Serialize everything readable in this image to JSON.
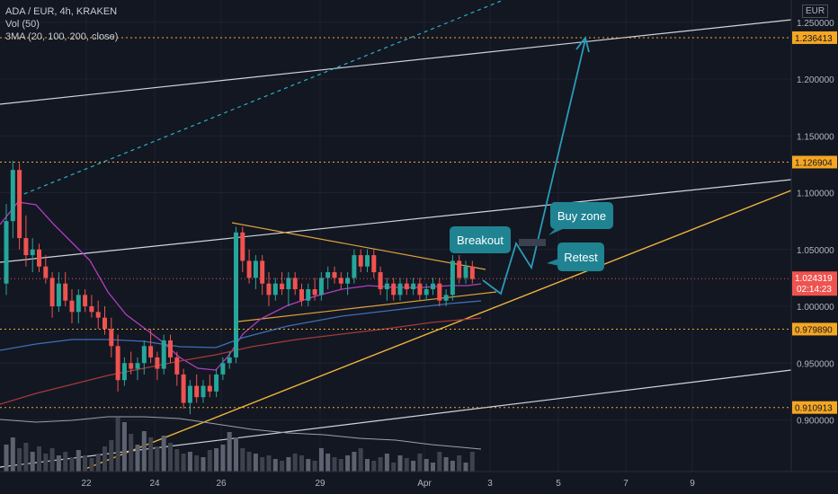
{
  "header": {
    "symbol_line": "ADA / EUR, 4h, KRAKEN",
    "volume_line": "Vol (50)",
    "ma_line": "3MA (20, 100, 200, close)",
    "currency": "EUR"
  },
  "chart_data": {
    "type": "candlestick",
    "title": "ADA / EUR, 4h, KRAKEN",
    "currency": "EUR",
    "ylim": [
      0.88,
      1.25
    ],
    "price_ticks": [
      "0.900000",
      "0.950000",
      "1.000000",
      "1.050000",
      "1.100000",
      "1.150000",
      "1.200000",
      "1.250000"
    ],
    "price_tick_values": [
      0.9,
      0.95,
      1.0,
      1.05,
      1.1,
      1.15,
      1.2,
      1.25
    ],
    "date_ticks": [
      "22",
      "24",
      "26",
      "29",
      "Apr",
      "3",
      "5",
      "7",
      "9"
    ],
    "levels": [
      {
        "label": "1.236413",
        "value": 1.236413
      },
      {
        "label": "1.126904",
        "value": 1.126904
      },
      {
        "label": "0.979890",
        "value": 0.97989
      },
      {
        "label": "0.910913",
        "value": 0.910913
      }
    ],
    "current_price": {
      "label": "1.024319",
      "value": 1.024319,
      "countdown": "02:14:23"
    },
    "annotations": [
      "Breakout",
      "Buy zone",
      "Retest"
    ],
    "candles": [
      {
        "o": 1.02,
        "h": 1.09,
        "l": 1.01,
        "c": 1.075
      },
      {
        "o": 1.075,
        "h": 1.128,
        "l": 1.06,
        "c": 1.12
      },
      {
        "o": 1.12,
        "h": 1.126,
        "l": 1.05,
        "c": 1.06
      },
      {
        "o": 1.06,
        "h": 1.08,
        "l": 1.035,
        "c": 1.045
      },
      {
        "o": 1.045,
        "h": 1.06,
        "l": 1.03,
        "c": 1.05
      },
      {
        "o": 1.05,
        "h": 1.055,
        "l": 1.03,
        "c": 1.035
      },
      {
        "o": 1.035,
        "h": 1.045,
        "l": 1.02,
        "c": 1.025
      },
      {
        "o": 1.025,
        "h": 1.03,
        "l": 0.99,
        "c": 1.0
      },
      {
        "o": 1.0,
        "h": 1.03,
        "l": 0.995,
        "c": 1.02
      },
      {
        "o": 1.02,
        "h": 1.03,
        "l": 1.0,
        "c": 1.005
      },
      {
        "o": 1.005,
        "h": 1.015,
        "l": 0.985,
        "c": 0.995
      },
      {
        "o": 0.995,
        "h": 1.015,
        "l": 0.985,
        "c": 1.01
      },
      {
        "o": 1.01,
        "h": 1.015,
        "l": 0.995,
        "c": 1.0
      },
      {
        "o": 1.0,
        "h": 1.01,
        "l": 0.99,
        "c": 0.995
      },
      {
        "o": 0.995,
        "h": 1.005,
        "l": 0.98,
        "c": 0.99
      },
      {
        "o": 0.99,
        "h": 1.0,
        "l": 0.975,
        "c": 0.98
      },
      {
        "o": 0.98,
        "h": 0.99,
        "l": 0.955,
        "c": 0.965
      },
      {
        "o": 0.965,
        "h": 0.975,
        "l": 0.925,
        "c": 0.935
      },
      {
        "o": 0.935,
        "h": 0.955,
        "l": 0.93,
        "c": 0.95
      },
      {
        "o": 0.95,
        "h": 0.96,
        "l": 0.94,
        "c": 0.945
      },
      {
        "o": 0.945,
        "h": 0.955,
        "l": 0.935,
        "c": 0.95
      },
      {
        "o": 0.95,
        "h": 0.97,
        "l": 0.94,
        "c": 0.965
      },
      {
        "o": 0.965,
        "h": 0.98,
        "l": 0.95,
        "c": 0.955
      },
      {
        "o": 0.955,
        "h": 0.96,
        "l": 0.935,
        "c": 0.945
      },
      {
        "o": 0.945,
        "h": 0.975,
        "l": 0.94,
        "c": 0.97
      },
      {
        "o": 0.97,
        "h": 0.975,
        "l": 0.95,
        "c": 0.955
      },
      {
        "o": 0.955,
        "h": 0.96,
        "l": 0.93,
        "c": 0.94
      },
      {
        "o": 0.94,
        "h": 0.945,
        "l": 0.91,
        "c": 0.915
      },
      {
        "o": 0.915,
        "h": 0.935,
        "l": 0.905,
        "c": 0.93
      },
      {
        "o": 0.93,
        "h": 0.94,
        "l": 0.915,
        "c": 0.92
      },
      {
        "o": 0.92,
        "h": 0.935,
        "l": 0.915,
        "c": 0.93
      },
      {
        "o": 0.93,
        "h": 0.94,
        "l": 0.92,
        "c": 0.925
      },
      {
        "o": 0.925,
        "h": 0.945,
        "l": 0.92,
        "c": 0.94
      },
      {
        "o": 0.94,
        "h": 0.955,
        "l": 0.935,
        "c": 0.95
      },
      {
        "o": 0.95,
        "h": 0.96,
        "l": 0.945,
        "c": 0.955
      },
      {
        "o": 0.955,
        "h": 1.07,
        "l": 0.95,
        "c": 1.065
      },
      {
        "o": 1.065,
        "h": 1.07,
        "l": 1.03,
        "c": 1.04
      },
      {
        "o": 1.04,
        "h": 1.05,
        "l": 1.02,
        "c": 1.025
      },
      {
        "o": 1.025,
        "h": 1.045,
        "l": 1.015,
        "c": 1.04
      },
      {
        "o": 1.04,
        "h": 1.045,
        "l": 1.01,
        "c": 1.02
      },
      {
        "o": 1.02,
        "h": 1.03,
        "l": 1.0,
        "c": 1.01
      },
      {
        "o": 1.01,
        "h": 1.025,
        "l": 1.005,
        "c": 1.02
      },
      {
        "o": 1.02,
        "h": 1.03,
        "l": 1.01,
        "c": 1.015
      },
      {
        "o": 1.015,
        "h": 1.03,
        "l": 1.0,
        "c": 1.025
      },
      {
        "o": 1.025,
        "h": 1.03,
        "l": 1.01,
        "c": 1.015
      },
      {
        "o": 1.015,
        "h": 1.02,
        "l": 1.0,
        "c": 1.005
      },
      {
        "o": 1.005,
        "h": 1.02,
        "l": 1.0,
        "c": 1.015
      },
      {
        "o": 1.015,
        "h": 1.025,
        "l": 1.005,
        "c": 1.01
      },
      {
        "o": 1.01,
        "h": 1.03,
        "l": 1.005,
        "c": 1.025
      },
      {
        "o": 1.025,
        "h": 1.035,
        "l": 1.015,
        "c": 1.03
      },
      {
        "o": 1.03,
        "h": 1.035,
        "l": 1.02,
        "c": 1.025
      },
      {
        "o": 1.025,
        "h": 1.03,
        "l": 1.015,
        "c": 1.02
      },
      {
        "o": 1.02,
        "h": 1.03,
        "l": 1.01,
        "c": 1.025
      },
      {
        "o": 1.025,
        "h": 1.05,
        "l": 1.02,
        "c": 1.045
      },
      {
        "o": 1.045,
        "h": 1.05,
        "l": 1.03,
        "c": 1.035
      },
      {
        "o": 1.035,
        "h": 1.05,
        "l": 1.03,
        "c": 1.045
      },
      {
        "o": 1.045,
        "h": 1.05,
        "l": 1.025,
        "c": 1.03
      },
      {
        "o": 1.03,
        "h": 1.035,
        "l": 1.01,
        "c": 1.015
      },
      {
        "o": 1.015,
        "h": 1.025,
        "l": 1.005,
        "c": 1.02
      },
      {
        "o": 1.02,
        "h": 1.025,
        "l": 1.005,
        "c": 1.01
      },
      {
        "o": 1.01,
        "h": 1.025,
        "l": 1.005,
        "c": 1.02
      },
      {
        "o": 1.02,
        "h": 1.025,
        "l": 1.01,
        "c": 1.015
      },
      {
        "o": 1.015,
        "h": 1.025,
        "l": 1.01,
        "c": 1.02
      },
      {
        "o": 1.02,
        "h": 1.025,
        "l": 1.005,
        "c": 1.01
      },
      {
        "o": 1.01,
        "h": 1.02,
        "l": 1.005,
        "c": 1.015
      },
      {
        "o": 1.015,
        "h": 1.025,
        "l": 1.01,
        "c": 1.02
      },
      {
        "o": 1.02,
        "h": 1.025,
        "l": 1.0,
        "c": 1.005
      },
      {
        "o": 1.005,
        "h": 1.015,
        "l": 1.0,
        "c": 1.01
      },
      {
        "o": 1.01,
        "h": 1.045,
        "l": 1.005,
        "c": 1.04
      },
      {
        "o": 1.04,
        "h": 1.045,
        "l": 1.02,
        "c": 1.025
      },
      {
        "o": 1.025,
        "h": 1.04,
        "l": 1.02,
        "c": 1.035
      },
      {
        "o": 1.035,
        "h": 1.04,
        "l": 1.02,
        "c": 1.024
      }
    ],
    "volume": [
      30,
      38,
      26,
      32,
      22,
      28,
      20,
      26,
      18,
      22,
      16,
      24,
      18,
      15,
      20,
      28,
      35,
      60,
      55,
      42,
      30,
      45,
      38,
      28,
      40,
      32,
      25,
      20,
      22,
      18,
      16,
      24,
      26,
      30,
      44,
      38,
      26,
      22,
      20,
      16,
      18,
      14,
      12,
      16,
      20,
      18,
      14,
      12,
      26,
      20,
      16,
      14,
      18,
      22,
      26,
      14,
      12,
      16,
      20,
      10,
      18,
      15,
      12,
      20,
      14,
      10,
      22,
      16,
      12,
      18,
      10,
      22
    ]
  }
}
